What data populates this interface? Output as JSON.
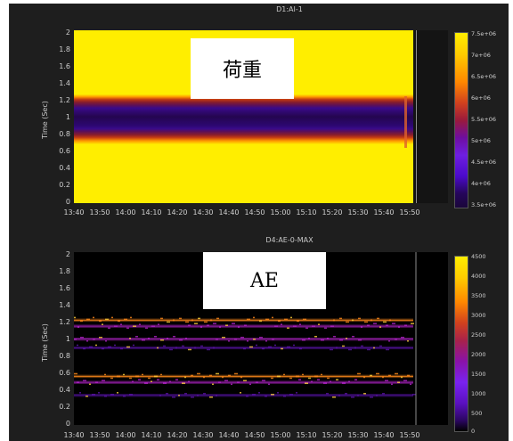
{
  "panels": [
    {
      "title": "D1:AI-1",
      "ylabel": "Time (Sec)",
      "overlay_label": "荷重",
      "yticks": [
        "2",
        "1.8",
        "1.6",
        "1.4",
        "1.2",
        "1",
        "0.8",
        "0.6",
        "0.4",
        "0.2",
        "0"
      ],
      "xticks": [
        "13:40",
        "13:50",
        "14:00",
        "14:10",
        "14:20",
        "14:30",
        "14:40",
        "14:50",
        "15:00",
        "15:10",
        "15:20",
        "15:30",
        "15:40",
        "15:50"
      ],
      "colorbar_ticks": [
        "7.5e+06",
        "7e+06",
        "6.5e+06",
        "6e+06",
        "5.5e+06",
        "5e+06",
        "4.5e+06",
        "4e+06",
        "3.5e+06"
      ]
    },
    {
      "title": "D4:AE-0-MAX",
      "ylabel": "Time (Sec)",
      "overlay_label": "AE",
      "yticks": [
        "2",
        "1.8",
        "1.6",
        "1.4",
        "1.2",
        "1",
        "0.8",
        "0.6",
        "0.4",
        "0.2",
        "0"
      ],
      "xticks": [
        "13:40",
        "13:50",
        "14:00",
        "14:10",
        "14:20",
        "14:30",
        "14:40",
        "14:50",
        "15:00",
        "15:10",
        "15:20",
        "15:30",
        "15:40",
        "15:50"
      ],
      "colorbar_ticks": [
        "4500",
        "4000",
        "3500",
        "3000",
        "2500",
        "2000",
        "1500",
        "1000",
        "500",
        "0"
      ]
    }
  ],
  "chart_data": [
    {
      "type": "heatmap",
      "title": "D1:AI-1",
      "ylabel": "Time (Sec)",
      "ylim": [
        0,
        2
      ],
      "xlim": [
        "13:40",
        "15:50"
      ],
      "colorbar_range": [
        3500000.0,
        7500000.0
      ],
      "bands": [
        {
          "y_range": [
            1.25,
            2.0
          ],
          "level": "high (~7.5e+06)"
        },
        {
          "y_range": [
            1.1,
            1.25
          ],
          "level": "transition (~6e+06)"
        },
        {
          "y_range": [
            0.8,
            1.1
          ],
          "level": "low (~3.5e+06)"
        },
        {
          "y_range": [
            0.65,
            0.8
          ],
          "level": "transition (~6e+06)"
        },
        {
          "y_range": [
            0.0,
            0.65
          ],
          "level": "high (~7.5e+06)"
        }
      ]
    },
    {
      "type": "heatmap",
      "title": "D4:AE-0-MAX",
      "ylabel": "Time (Sec)",
      "ylim": [
        0,
        2
      ],
      "xlim": [
        "13:40",
        "15:50"
      ],
      "colorbar_range": [
        0,
        4500
      ],
      "bands": [
        {
          "y": 1.22,
          "level": "medium-high"
        },
        {
          "y": 1.15,
          "level": "medium"
        },
        {
          "y": 1.0,
          "level": "low-medium"
        },
        {
          "y": 0.9,
          "level": "low"
        },
        {
          "y": 0.57,
          "level": "medium-high"
        },
        {
          "y": 0.5,
          "level": "medium"
        },
        {
          "y": 0.35,
          "level": "low"
        }
      ]
    }
  ]
}
